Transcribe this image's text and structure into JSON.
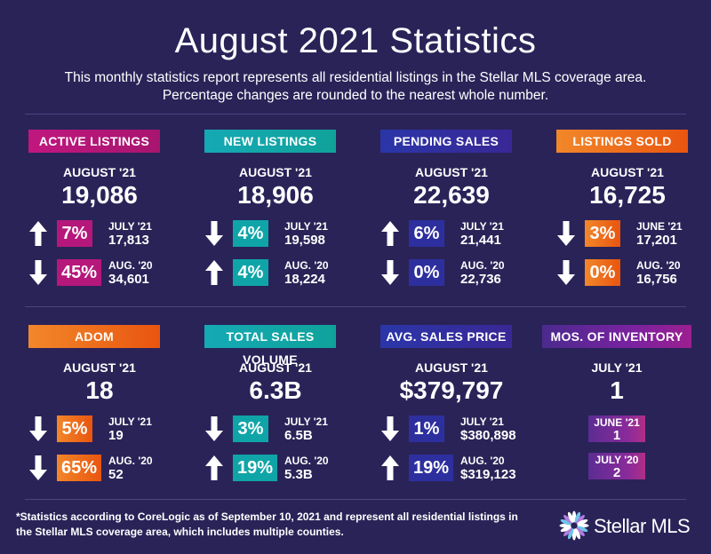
{
  "title": "August 2021 Statistics",
  "subtitle_line1": "This monthly statistics report represents all residential listings in the Stellar MLS coverage area.",
  "subtitle_line2": "Percentage changes are rounded to the nearest whole number.",
  "colors": {
    "background": "#2a2358",
    "magenta": "#b5177a",
    "teal": "#0fa5a8",
    "blue": "#2e2f9e",
    "orange": "#f07b13",
    "purple": "#6a1f9c"
  },
  "cards": {
    "active": {
      "label": "ACTIVE LISTINGS",
      "period": "AUGUST '21",
      "value": "19,086",
      "c1": {
        "direction": "up",
        "pct": "7%",
        "label": "JULY '21",
        "value": "17,813"
      },
      "c2": {
        "direction": "down",
        "pct": "45%",
        "label": "AUG. '20",
        "value": "34,601"
      }
    },
    "new": {
      "label": "NEW LISTINGS",
      "period": "AUGUST '21",
      "value": "18,906",
      "c1": {
        "direction": "down",
        "pct": "4%",
        "label": "JULY '21",
        "value": "19,598"
      },
      "c2": {
        "direction": "up",
        "pct": "4%",
        "label": "AUG. '20",
        "value": "18,224"
      }
    },
    "pending": {
      "label": "PENDING SALES",
      "period": "AUGUST '21",
      "value": "22,639",
      "c1": {
        "direction": "up",
        "pct": "6%",
        "label": "JULY '21",
        "value": "21,441"
      },
      "c2": {
        "direction": "down",
        "pct": "0%",
        "label": "AUG. '20",
        "value": "22,736"
      }
    },
    "sold": {
      "label": "LISTINGS SOLD",
      "period": "AUGUST '21",
      "value": "16,725",
      "c1": {
        "direction": "down",
        "pct": "3%",
        "label": "JUNE '21",
        "value": "17,201"
      },
      "c2": {
        "direction": "down",
        "pct": "0%",
        "label": "AUG. '20",
        "value": "16,756"
      }
    },
    "adom": {
      "label": "ADOM",
      "period": "AUGUST '21",
      "value": "18",
      "c1": {
        "direction": "down",
        "pct": "5%",
        "label": "JULY '21",
        "value": "19"
      },
      "c2": {
        "direction": "down",
        "pct": "65%",
        "label": "AUG. '20",
        "value": "52"
      }
    },
    "volume": {
      "label": "TOTAL SALES VOLUME",
      "period": "AUGUST '21",
      "value": "6.3B",
      "c1": {
        "direction": "down",
        "pct": "3%",
        "label": "JULY '21",
        "value": "6.5B"
      },
      "c2": {
        "direction": "up",
        "pct": "19%",
        "label": "AUG. '20",
        "value": "5.3B"
      }
    },
    "price": {
      "label": "AVG. SALES PRICE",
      "period": "AUGUST '21",
      "value": "$379,797",
      "c1": {
        "direction": "down",
        "pct": "1%",
        "label": "JULY '21",
        "value": "$380,898"
      },
      "c2": {
        "direction": "up",
        "pct": "19%",
        "label": "AUG. '20",
        "value": "$319,123"
      }
    },
    "inventory": {
      "label": "MOS. OF INVENTORY",
      "period": "JULY '21",
      "value": "1",
      "c1": {
        "label": "JUNE '21",
        "value": "1"
      },
      "c2": {
        "label": "JULY '20",
        "value": "2"
      }
    }
  },
  "footnote_line1": "*Statistics according to CoreLogic as of September 10, 2021 and represent all residential listings in",
  "footnote_line2": "the Stellar MLS coverage area, which includes multiple counties.",
  "logo": {
    "text": "Stellar MLS",
    "icon": "starburst-icon"
  }
}
